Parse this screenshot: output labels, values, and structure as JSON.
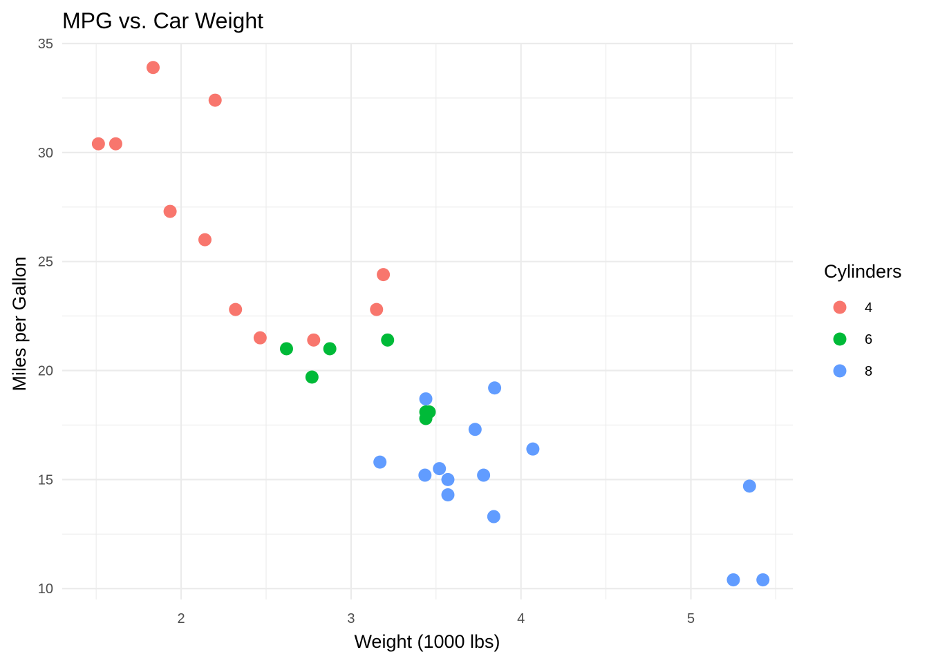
{
  "chart_data": {
    "type": "scatter",
    "title": "MPG vs. Car Weight",
    "xlabel": "Weight (1000 lbs)",
    "ylabel": "Miles per Gallon",
    "xlim": [
      1.3,
      5.6
    ],
    "ylim": [
      9.5,
      35
    ],
    "xticks": [
      2,
      3,
      4,
      5
    ],
    "yticks": [
      10,
      15,
      20,
      25,
      30,
      35
    ],
    "x_minor": [
      1.5,
      2.5,
      3.5,
      4.5,
      5.5
    ],
    "y_minor": [
      12.5,
      17.5,
      22.5,
      27.5,
      32.5
    ],
    "grid": true,
    "legend": {
      "title": "Cylinders",
      "position": "right"
    },
    "series": [
      {
        "name": "4",
        "color": "#F8766D",
        "points": [
          [
            1.513,
            30.4
          ],
          [
            1.615,
            30.4
          ],
          [
            1.835,
            33.9
          ],
          [
            1.935,
            27.3
          ],
          [
            2.14,
            26.0
          ],
          [
            2.2,
            32.4
          ],
          [
            2.32,
            22.8
          ],
          [
            2.465,
            21.5
          ],
          [
            2.78,
            21.4
          ],
          [
            3.15,
            22.8
          ],
          [
            3.19,
            24.4
          ]
        ]
      },
      {
        "name": "6",
        "color": "#00BA38",
        "points": [
          [
            2.62,
            21.0
          ],
          [
            2.875,
            21.0
          ],
          [
            2.77,
            19.7
          ],
          [
            3.215,
            21.4
          ],
          [
            3.44,
            18.1
          ],
          [
            3.44,
            17.8
          ],
          [
            3.46,
            18.1
          ]
        ]
      },
      {
        "name": "8",
        "color": "#619CFF",
        "points": [
          [
            3.44,
            18.7
          ],
          [
            3.57,
            14.3
          ],
          [
            4.07,
            16.4
          ],
          [
            3.73,
            17.3
          ],
          [
            3.78,
            15.2
          ],
          [
            5.25,
            10.4
          ],
          [
            5.424,
            10.4
          ],
          [
            5.345,
            14.7
          ],
          [
            3.52,
            15.5
          ],
          [
            3.435,
            15.2
          ],
          [
            3.84,
            13.3
          ],
          [
            3.845,
            19.2
          ],
          [
            3.17,
            15.8
          ],
          [
            3.57,
            15.0
          ]
        ]
      }
    ]
  }
}
